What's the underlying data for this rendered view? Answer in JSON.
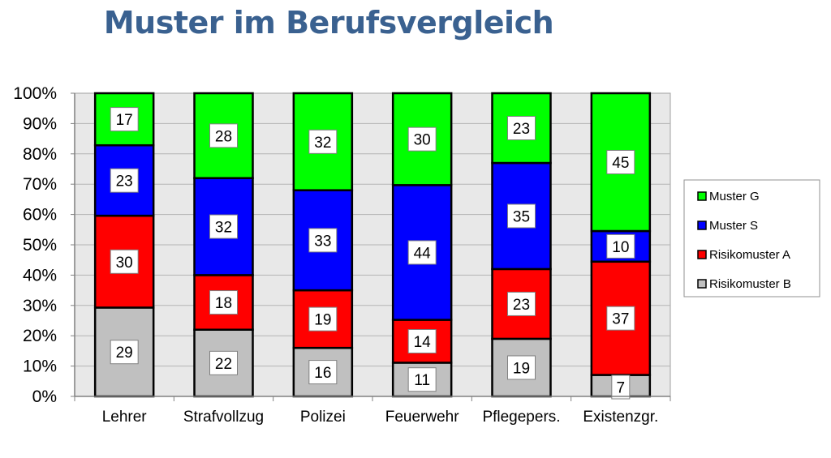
{
  "chart_data": {
    "type": "bar",
    "stacked": true,
    "normalized": true,
    "title": "Muster im Berufsvergleich",
    "xlabel": "",
    "ylabel": "",
    "ylim": [
      0,
      100
    ],
    "yticks": [
      "0%",
      "10%",
      "20%",
      "30%",
      "40%",
      "50%",
      "60%",
      "70%",
      "80%",
      "90%",
      "100%"
    ],
    "grid": true,
    "legend_position": "right",
    "categories": [
      "Lehrer",
      "Strafvollzug",
      "Polizei",
      "Feuerwehr",
      "Pflegepers.",
      "Existenzgr."
    ],
    "series": [
      {
        "name": "Risikomuster B",
        "color": "#c0c0c0",
        "values": [
          29,
          22,
          16,
          11,
          19,
          7
        ]
      },
      {
        "name": "Risikomuster A",
        "color": "#ff0000",
        "values": [
          30,
          18,
          19,
          14,
          23,
          37
        ]
      },
      {
        "name": "Muster S",
        "color": "#0000ff",
        "values": [
          23,
          32,
          33,
          44,
          35,
          10
        ]
      },
      {
        "name": "Muster G",
        "color": "#00ff00",
        "values": [
          17,
          28,
          32,
          30,
          23,
          45
        ]
      }
    ],
    "legend_order": [
      "Muster G",
      "Muster S",
      "Risikomuster A",
      "Risikomuster B"
    ]
  }
}
